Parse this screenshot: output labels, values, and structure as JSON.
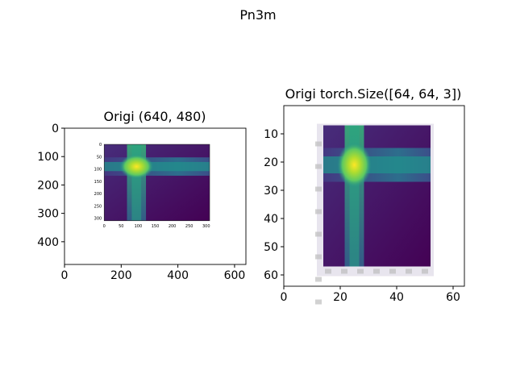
{
  "title": "Pn3m",
  "colormap": "viridis",
  "chart_data": [
    {
      "type": "heatmap",
      "title": "Origi (640, 480)",
      "xlim": [
        0,
        640
      ],
      "ylim": [
        480,
        0
      ],
      "xticks": [
        "0",
        "200",
        "400",
        "600"
      ],
      "yticks": [
        "0",
        "100",
        "200",
        "300",
        "400"
      ],
      "image": {
        "extent": {
          "x": [
            140,
            512
          ],
          "y": [
            57,
            326
          ]
        },
        "inner_axes": {
          "xlim": [
            0,
            310
          ],
          "ylim": [
            310,
            0
          ],
          "xticks": [
            "0",
            "50",
            "100",
            "150",
            "200",
            "250",
            "300"
          ],
          "yticks": [
            "0",
            "50",
            "100",
            "150",
            "200",
            "250",
            "300"
          ]
        },
        "bright_cross": {
          "x": 95,
          "y": 90
        }
      }
    },
    {
      "type": "heatmap",
      "title": "Origi torch.Size([64, 64, 3])",
      "xlim": [
        0,
        64
      ],
      "ylim": [
        64,
        0
      ],
      "xticks": [
        "0",
        "20",
        "40",
        "60"
      ],
      "yticks": [
        "10",
        "20",
        "30",
        "40",
        "50",
        "60"
      ],
      "image": {
        "extent": {
          "x": [
            14,
            52
          ],
          "y": [
            7,
            57
          ]
        },
        "bright_cross": {
          "x": 25,
          "y": 21
        }
      }
    }
  ]
}
